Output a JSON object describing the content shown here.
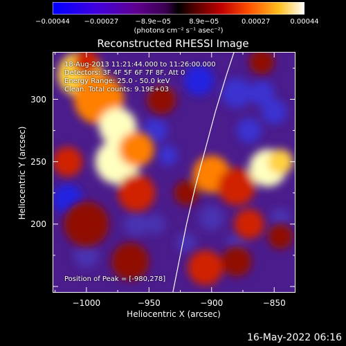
{
  "chart_data": {
    "type": "heatmap",
    "title": "Reconstructed RHESSI Image",
    "xlabel": "Heliocentric X (arcsec)",
    "ylabel": "Heliocentric Y (arcsec)",
    "xlim": [
      -1027,
      -833
    ],
    "ylim": [
      145,
      338
    ],
    "x_ticks": [
      "−1000",
      "−950",
      "−900",
      "−850"
    ],
    "x_tick_values": [
      -1000,
      -950,
      -900,
      -850
    ],
    "y_ticks": [
      "200",
      "250",
      "300"
    ],
    "y_tick_values": [
      200,
      250,
      300
    ],
    "colorbar": {
      "ticks": [
        "−0.00044",
        "−0.00027",
        "−8.9e−05",
        "8.9e−05",
        "0.00027",
        "0.00044"
      ],
      "tick_values": [
        -0.00044,
        -0.00027,
        -8.9e-05,
        8.9e-05,
        0.00027,
        0.00044
      ],
      "units": "(photons cm⁻² s⁻¹ asec⁻²)",
      "range": [
        -0.00044,
        0.00044
      ]
    },
    "annotations": [
      "18-Aug-2013 11:21:44.000 to 11:26:00.000",
      "Detectors: 3F 4F 5F 6F 7F 8F, Att 0",
      "Energy Range: 25.0 - 50.0 keV",
      "Clean.  Total counts: 9.19E+03",
      "Position of Peak = [-980,278]"
    ],
    "limb_curve": [
      [
        -931,
        145
      ],
      [
        -926,
        170
      ],
      [
        -920,
        200
      ],
      [
        -913,
        230
      ],
      [
        -905,
        260
      ],
      [
        -897,
        290
      ],
      [
        -888,
        320
      ],
      [
        -882,
        338
      ]
    ],
    "emission_regions": [
      {
        "x": -1005,
        "y": 320,
        "level": 0.9,
        "size": 18
      },
      {
        "x": -990,
        "y": 300,
        "level": 0.8,
        "size": 20
      },
      {
        "x": -975,
        "y": 278,
        "level": 1.0,
        "size": 15
      },
      {
        "x": -975,
        "y": 250,
        "level": 0.95,
        "size": 18
      },
      {
        "x": -960,
        "y": 260,
        "level": 0.8,
        "size": 14
      },
      {
        "x": -1015,
        "y": 250,
        "level": 0.6,
        "size": 12
      },
      {
        "x": -960,
        "y": 225,
        "level": 0.55,
        "size": 15
      },
      {
        "x": -940,
        "y": 300,
        "level": 0.5,
        "size": 12
      },
      {
        "x": -900,
        "y": 240,
        "level": 0.75,
        "size": 15
      },
      {
        "x": -880,
        "y": 230,
        "level": 0.6,
        "size": 15
      },
      {
        "x": -855,
        "y": 245,
        "level": 0.95,
        "size": 15
      },
      {
        "x": -845,
        "y": 250,
        "level": 0.85,
        "size": 10
      },
      {
        "x": -870,
        "y": 200,
        "level": 0.55,
        "size": 12
      },
      {
        "x": -845,
        "y": 190,
        "level": 0.5,
        "size": 10
      },
      {
        "x": -1000,
        "y": 200,
        "level": 0.5,
        "size": 18
      },
      {
        "x": -965,
        "y": 170,
        "level": 0.5,
        "size": 15
      },
      {
        "x": -905,
        "y": 165,
        "level": 0.55,
        "size": 14
      },
      {
        "x": -860,
        "y": 330,
        "level": 0.4,
        "size": 10
      },
      {
        "x": -1000,
        "y": 330,
        "level": 0.6,
        "size": 10
      },
      {
        "x": -880,
        "y": 170,
        "level": 0.4,
        "size": 12
      },
      {
        "x": -920,
        "y": 225,
        "level": 0.4,
        "size": 10
      }
    ],
    "negative_regions": [
      {
        "x": -1015,
        "y": 220,
        "level": 0.7,
        "size": 12
      },
      {
        "x": -1000,
        "y": 175,
        "level": 0.5,
        "size": 10
      },
      {
        "x": -1005,
        "y": 205,
        "level": 0.6,
        "size": 8
      },
      {
        "x": -960,
        "y": 200,
        "level": 0.5,
        "size": 10
      },
      {
        "x": -945,
        "y": 200,
        "level": 0.5,
        "size": 8
      },
      {
        "x": -945,
        "y": 275,
        "level": 0.6,
        "size": 10
      },
      {
        "x": -940,
        "y": 305,
        "level": 0.6,
        "size": 10
      },
      {
        "x": -910,
        "y": 315,
        "level": 0.7,
        "size": 12
      },
      {
        "x": -880,
        "y": 305,
        "level": 0.6,
        "size": 12
      },
      {
        "x": -870,
        "y": 275,
        "level": 0.6,
        "size": 10
      },
      {
        "x": -860,
        "y": 305,
        "level": 0.6,
        "size": 10
      },
      {
        "x": -850,
        "y": 290,
        "level": 0.6,
        "size": 10
      },
      {
        "x": -920,
        "y": 185,
        "level": 0.5,
        "size": 8
      },
      {
        "x": -900,
        "y": 205,
        "level": 0.5,
        "size": 10
      },
      {
        "x": -845,
        "y": 205,
        "level": 0.5,
        "size": 8
      },
      {
        "x": -935,
        "y": 255,
        "level": 0.6,
        "size": 8
      },
      {
        "x": -880,
        "y": 185,
        "level": 0.5,
        "size": 8
      }
    ],
    "grid": false
  },
  "footer": {
    "date": "16-May-2022 06:16"
  }
}
